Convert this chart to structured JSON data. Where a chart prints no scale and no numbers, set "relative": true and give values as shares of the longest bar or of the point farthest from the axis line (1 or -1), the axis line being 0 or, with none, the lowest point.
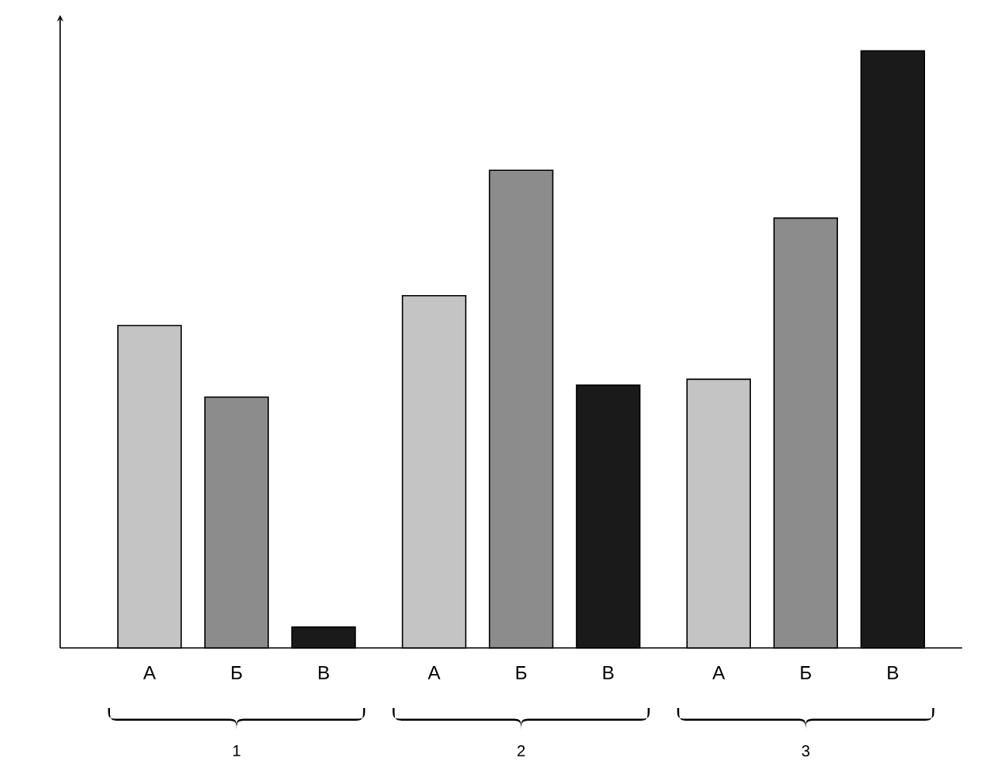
{
  "chart_data": {
    "type": "bar",
    "relative": true,
    "categories": [
      "1",
      "2",
      "3"
    ],
    "series": [
      {
        "name": "А",
        "color": "#c4c4c4",
        "values": [
          0.54,
          0.59,
          0.45
        ]
      },
      {
        "name": "Б",
        "color": "#8c8c8c",
        "values": [
          0.42,
          0.8,
          0.72
        ]
      },
      {
        "name": "В",
        "color": "#1a1a1a",
        "values": [
          0.035,
          0.44,
          1.0
        ]
      }
    ]
  }
}
